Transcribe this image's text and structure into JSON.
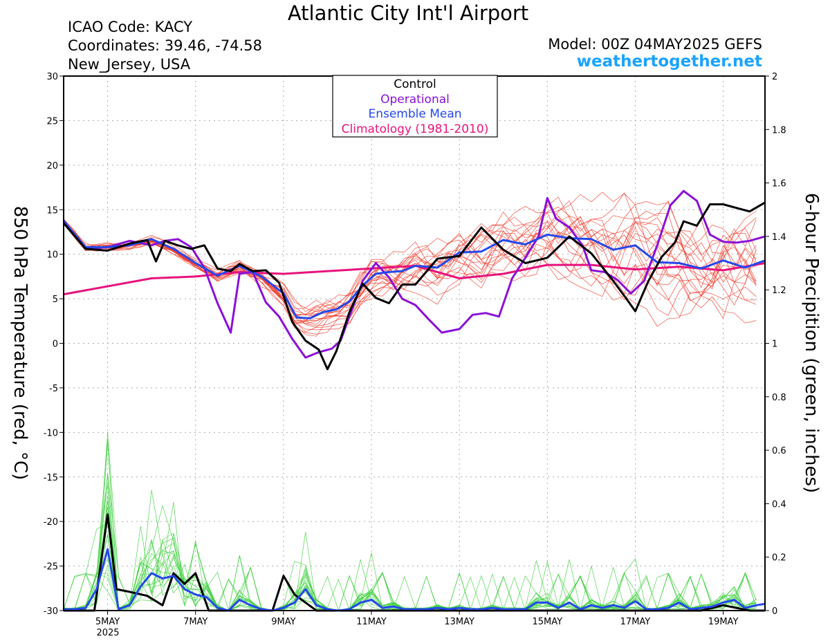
{
  "header": {
    "title": "Atlantic City Int'l Airport",
    "icao": "ICAO Code: KACY",
    "coordinates": "Coordinates: 39.46, -74.58",
    "location": "New_Jersey, USA",
    "model": "Model: 00Z 04MAY2025 GEFS",
    "site": "weathertogether.net"
  },
  "colors": {
    "control": "#000000",
    "operational": "#8a10d8",
    "ensemble_mean": "#2448ec",
    "climatology": "#e8127c",
    "members_temp": "#f03c2c",
    "members_precip": "#40d040",
    "site": "#1aa3ff"
  },
  "chart_data": {
    "type": "line",
    "title": "Atlantic City Int'l Airport",
    "ylabel_left": "850 hPa Temperature (red, °C)",
    "ylabel_right": "6-hour Precipition (green, inches)",
    "ylim_left": [
      -30,
      30
    ],
    "ylim_right": [
      0,
      2
    ],
    "yticks_left": [
      "30",
      "25",
      "20",
      "15",
      "10",
      "5",
      "0",
      "-5",
      "-10",
      "-15",
      "-20",
      "-25",
      "-30"
    ],
    "yticks_right": [
      "2",
      "1.8",
      "1.6",
      "1.4",
      "1.2",
      "1",
      "0.8",
      "0.6",
      "0.4",
      "0.2",
      "0"
    ],
    "x_range_days": [
      4.0,
      19.95
    ],
    "xticks": [
      {
        "day": 5,
        "label": "5MAY"
      },
      {
        "day": 7,
        "label": "7MAY"
      },
      {
        "day": 9,
        "label": "9MAY"
      },
      {
        "day": 11,
        "label": "11MAY"
      },
      {
        "day": 13,
        "label": "13MAY"
      },
      {
        "day": 15,
        "label": "15MAY"
      },
      {
        "day": 17,
        "label": "17MAY"
      },
      {
        "day": 19,
        "label": "19MAY"
      }
    ],
    "year_label": "2025",
    "grid": true,
    "legend": {
      "placement": "top-center",
      "entries": [
        "Control",
        "Operational",
        "Ensemble Mean",
        "Climatology (1981-2010)"
      ]
    },
    "temperature_series": [
      {
        "name": "Control",
        "color_key": "control",
        "x": [
          4.0,
          4.5,
          5.0,
          5.5,
          5.9,
          6.1,
          6.3,
          6.6,
          6.9,
          7.2,
          7.5,
          7.8,
          8.0,
          8.3,
          8.6,
          8.9,
          9.2,
          9.5,
          9.8,
          10.0,
          10.2,
          10.5,
          10.8,
          11.1,
          11.4,
          11.7,
          12.0,
          12.5,
          13.0,
          13.5,
          14.0,
          14.5,
          15.0,
          15.5,
          16.0,
          16.5,
          16.8,
          17.0,
          17.3,
          17.6,
          17.9,
          18.1,
          18.4,
          18.7,
          19.0,
          19.3,
          19.6,
          19.95
        ],
        "y": [
          13.5,
          10.6,
          10.4,
          11.2,
          11.6,
          9.2,
          11.5,
          11.0,
          10.6,
          11.0,
          8.4,
          8.1,
          8.9,
          8.1,
          8.2,
          6.8,
          2.4,
          0.3,
          -0.7,
          -2.9,
          -0.9,
          3.5,
          6.7,
          5.1,
          4.5,
          6.6,
          6.6,
          9.5,
          9.8,
          13.0,
          10.5,
          9.0,
          9.6,
          12.0,
          10.1,
          7.0,
          5.0,
          3.6,
          7.0,
          9.7,
          11.3,
          13.7,
          13.2,
          15.6,
          15.6,
          15.2,
          14.8,
          15.8
        ]
      },
      {
        "name": "Operational",
        "color_key": "operational",
        "x": [
          4.0,
          4.5,
          5.0,
          5.5,
          6.0,
          6.3,
          6.6,
          6.9,
          7.2,
          7.5,
          7.8,
          8.0,
          8.3,
          8.6,
          8.9,
          9.2,
          9.5,
          9.8,
          10.1,
          10.3,
          10.5,
          10.8,
          11.1,
          11.4,
          11.7,
          12.0,
          12.3,
          12.6,
          13.0,
          13.3,
          13.6,
          13.9,
          14.2,
          14.5,
          14.8,
          15.0,
          15.2,
          15.5,
          15.8,
          16.0,
          16.3,
          16.6,
          16.9,
          17.2,
          17.5,
          17.8,
          18.1,
          18.4,
          18.7,
          19.0,
          19.3,
          19.6,
          19.95
        ],
        "y": [
          13.8,
          10.6,
          10.8,
          11.5,
          11.0,
          11.5,
          11.7,
          10.8,
          8.5,
          4.5,
          1.2,
          7.8,
          8.0,
          4.6,
          3.0,
          0.5,
          -1.6,
          -1.0,
          -0.6,
          0.3,
          3.0,
          7.0,
          9.0,
          7.4,
          5.0,
          4.3,
          2.7,
          1.2,
          1.6,
          3.2,
          3.4,
          3.0,
          7.3,
          9.6,
          12.0,
          16.3,
          14.0,
          13.0,
          11.0,
          8.2,
          8.0,
          7.1,
          5.6,
          7.0,
          11.0,
          15.5,
          17.1,
          16.0,
          12.2,
          11.4,
          11.3,
          11.5,
          12.0
        ]
      },
      {
        "name": "Ensemble Mean",
        "color_key": "ensemble_mean",
        "x": [
          4.0,
          4.5,
          5.0,
          5.5,
          6.0,
          6.5,
          7.0,
          7.5,
          8.0,
          8.5,
          9.0,
          9.3,
          9.6,
          9.9,
          10.2,
          10.5,
          10.8,
          11.1,
          11.4,
          11.7,
          12.0,
          12.5,
          13.0,
          13.5,
          14.0,
          14.5,
          15.0,
          15.5,
          16.0,
          16.5,
          17.0,
          17.5,
          18.0,
          18.5,
          19.0,
          19.5,
          19.95
        ],
        "y": [
          13.7,
          10.8,
          10.8,
          11.0,
          11.7,
          10.6,
          9.0,
          7.6,
          8.7,
          7.5,
          5.6,
          2.9,
          2.8,
          3.5,
          3.8,
          4.7,
          6.5,
          7.8,
          8.0,
          8.1,
          8.7,
          8.5,
          10.2,
          10.3,
          11.6,
          11.1,
          12.2,
          11.8,
          11.7,
          10.5,
          11.0,
          9.1,
          9.0,
          8.4,
          9.3,
          8.5,
          9.3
        ]
      },
      {
        "name": "Climatology (1981-2010)",
        "color_key": "climatology",
        "x": [
          4.0,
          6.0,
          7.0,
          8.0,
          9.0,
          10.0,
          11.0,
          12.0,
          13.0,
          14.0,
          15.0,
          16.0,
          17.0,
          18.0,
          19.0,
          19.95
        ],
        "y": [
          5.5,
          7.3,
          7.5,
          8.0,
          7.8,
          8.1,
          8.4,
          8.7,
          7.3,
          7.8,
          8.8,
          8.8,
          8.3,
          8.6,
          8.2,
          9.0
        ]
      }
    ],
    "precipitation_series": [
      {
        "name": "Control",
        "color_key": "control",
        "x": [
          4.0,
          4.3,
          4.7,
          5.0,
          5.2,
          5.5,
          5.9,
          6.25,
          6.5,
          6.75,
          7.0,
          7.3,
          7.5,
          8.0,
          8.5,
          8.75,
          9.0,
          9.25,
          9.5,
          9.75,
          10.0,
          10.5,
          11.0,
          11.5,
          12.0,
          13.0,
          14.0,
          15.0,
          16.0,
          17.0,
          18.0,
          18.5,
          19.0,
          19.3,
          19.6,
          19.95
        ],
        "y": [
          0,
          0,
          0,
          0.36,
          0.08,
          0.07,
          0.055,
          0.02,
          0.14,
          0.1,
          0.14,
          0,
          0,
          0,
          0,
          0,
          0.13,
          0.06,
          0.03,
          0,
          0,
          0,
          0,
          0,
          0,
          0,
          0,
          0,
          0,
          0,
          0,
          0,
          0.02,
          0.01,
          0,
          0
        ]
      },
      {
        "name": "Ensemble Mean",
        "color_key": "ensemble_mean",
        "x": [
          4.0,
          4.25,
          4.5,
          4.75,
          5.0,
          5.25,
          5.5,
          5.75,
          6.0,
          6.25,
          6.5,
          6.75,
          7.0,
          7.25,
          7.5,
          7.75,
          8.0,
          8.25,
          8.5,
          8.75,
          9.0,
          9.25,
          9.5,
          9.75,
          10.0,
          10.25,
          10.5,
          10.75,
          11.0,
          11.25,
          11.5,
          11.75,
          12.0,
          12.25,
          12.5,
          12.75,
          13.0,
          13.25,
          13.5,
          13.75,
          14.0,
          14.25,
          14.5,
          14.75,
          15.0,
          15.25,
          15.5,
          15.75,
          16.0,
          16.25,
          16.5,
          16.75,
          17.0,
          17.25,
          17.5,
          17.75,
          18.0,
          18.25,
          18.5,
          18.75,
          19.0,
          19.25,
          19.5,
          19.75,
          19.95
        ],
        "y": [
          0.005,
          0.005,
          0.01,
          0.08,
          0.23,
          0.005,
          0.02,
          0.09,
          0.14,
          0.12,
          0.13,
          0.08,
          0.06,
          0.05,
          0.01,
          0,
          0.04,
          0.02,
          0.005,
          0,
          0.01,
          0.03,
          0.08,
          0.02,
          0.005,
          0,
          0.005,
          0.03,
          0.04,
          0.01,
          0.015,
          0.005,
          0.005,
          0.005,
          0.01,
          0.005,
          0.01,
          0.005,
          0.005,
          0.01,
          0.005,
          0.005,
          0.005,
          0.03,
          0.03,
          0.01,
          0.03,
          0.005,
          0.02,
          0.01,
          0.02,
          0.01,
          0.035,
          0.005,
          0.005,
          0.01,
          0.03,
          0.005,
          0.01,
          0.015,
          0.03,
          0.04,
          0.01,
          0.02,
          0.025
        ]
      }
    ]
  }
}
